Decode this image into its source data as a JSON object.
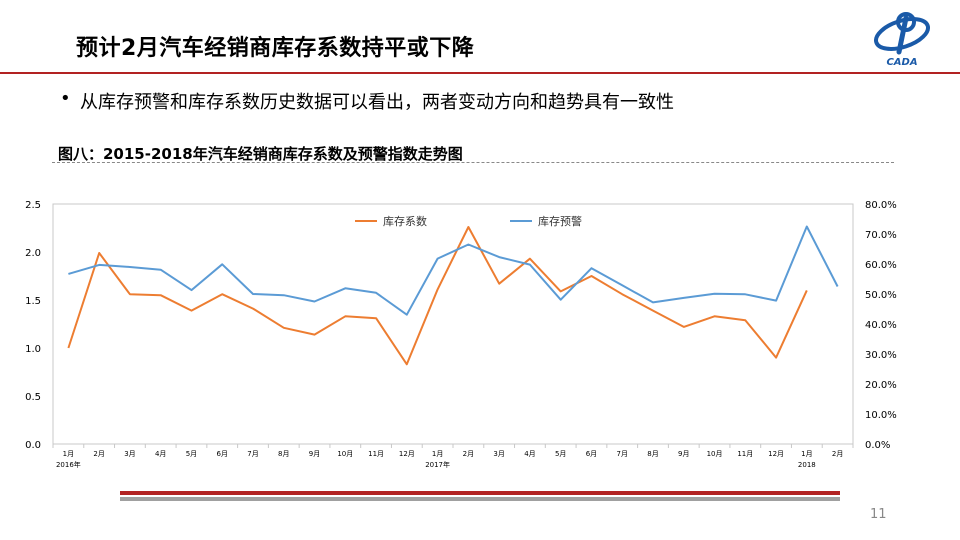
{
  "slide": {
    "title": "预计2月汽车经销商库存系数持平或下降",
    "bullet_symbol": "•",
    "bullet": "从库存预警和库存系数历史数据可以看出，两者变动方向和趋势具有一致性",
    "page_number": "11",
    "logo_text": "CADA"
  },
  "colors": {
    "accent_red": "#b22222",
    "coefficient_line": "#ed7d31",
    "warning_line": "#5b9bd5"
  },
  "chart_data": {
    "type": "line",
    "title": "图八：2015-2018年汽车经销商库存系数及预警指数走势图",
    "x_labels": [
      "1月",
      "2月",
      "3月",
      "4月",
      "5月",
      "6月",
      "7月",
      "8月",
      "9月",
      "10月",
      "11月",
      "12月",
      "1月",
      "2月",
      "3月",
      "4月",
      "5月",
      "6月",
      "7月",
      "8月",
      "9月",
      "10月",
      "11月",
      "12月",
      "1月",
      "2月"
    ],
    "year_labels": [
      {
        "index": 0,
        "text": "2016年"
      },
      {
        "index": 12,
        "text": "2017年"
      },
      {
        "index": 24,
        "text": "2018"
      }
    ],
    "y_left": {
      "min": 0,
      "max": 2.5,
      "ticks": [
        "0.0",
        "0.5",
        "1.0",
        "1.5",
        "2.0",
        "2.5"
      ]
    },
    "y_right": {
      "min": 0,
      "max": 80,
      "ticks": [
        "0.0%",
        "10.0%",
        "20.0%",
        "30.0%",
        "40.0%",
        "50.0%",
        "60.0%",
        "70.0%",
        "80.0%"
      ]
    },
    "legend_position": "top-center",
    "grid": false,
    "series": [
      {
        "name": "库存系数",
        "axis": "left",
        "color": "#ed7d31",
        "values": [
          1.0,
          1.99,
          1.56,
          1.55,
          1.39,
          1.56,
          1.41,
          1.21,
          1.14,
          1.33,
          1.31,
          0.83,
          1.61,
          2.26,
          1.67,
          1.93,
          1.59,
          1.75,
          1.56,
          1.39,
          1.22,
          1.33,
          1.29,
          0.9,
          1.6,
          null
        ]
      },
      {
        "name": "库存预警",
        "axis": "right",
        "color": "#5b9bd5",
        "values": [
          56.7,
          59.7,
          59.0,
          58.1,
          51.3,
          59.9,
          50.0,
          49.6,
          47.5,
          51.9,
          50.4,
          43.1,
          61.8,
          66.5,
          62.3,
          59.8,
          48.1,
          58.6,
          52.9,
          47.2,
          48.7,
          50.1,
          49.9,
          47.8,
          72.5,
          52.5
        ]
      }
    ]
  }
}
